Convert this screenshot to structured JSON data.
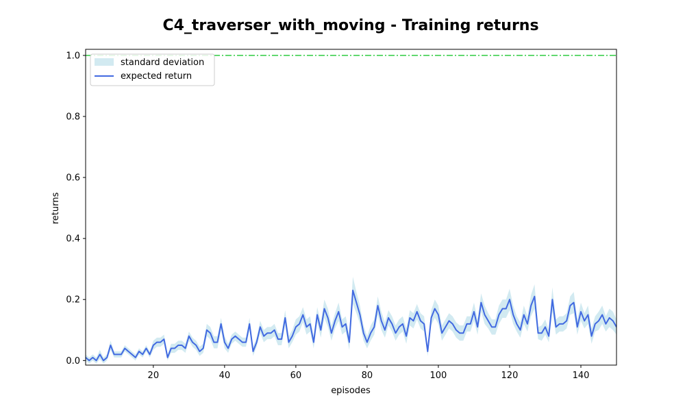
{
  "chart_data": {
    "type": "line",
    "title": "C4_traverser_with_moving - Training returns",
    "xlabel": "episodes",
    "ylabel": "returns",
    "xlim": [
      1,
      150
    ],
    "ylim": [
      -0.015,
      1.02
    ],
    "xticks": [
      20,
      40,
      60,
      80,
      100,
      120,
      140
    ],
    "yticks": [
      0.0,
      0.2,
      0.4,
      0.6,
      0.8,
      1.0
    ],
    "grid": false,
    "legend_position": "top-left",
    "legend": [
      "standard deviation",
      "expected return"
    ],
    "reference_line": {
      "y": 1.0,
      "color": "#2ecc40",
      "style": "dash-dot"
    },
    "series": [
      {
        "name": "expected return",
        "color": "#4169e1",
        "band_color": "#add8e6",
        "x": [
          1,
          2,
          3,
          4,
          5,
          6,
          7,
          8,
          9,
          10,
          11,
          12,
          13,
          14,
          15,
          16,
          17,
          18,
          19,
          20,
          21,
          22,
          23,
          24,
          25,
          26,
          27,
          28,
          29,
          30,
          31,
          32,
          33,
          34,
          35,
          36,
          37,
          38,
          39,
          40,
          41,
          42,
          43,
          44,
          45,
          46,
          47,
          48,
          49,
          50,
          51,
          52,
          53,
          54,
          55,
          56,
          57,
          58,
          59,
          60,
          61,
          62,
          63,
          64,
          65,
          66,
          67,
          68,
          69,
          70,
          71,
          72,
          73,
          74,
          75,
          76,
          77,
          78,
          79,
          80,
          81,
          82,
          83,
          84,
          85,
          86,
          87,
          88,
          89,
          90,
          91,
          92,
          93,
          94,
          95,
          96,
          97,
          98,
          99,
          100,
          101,
          102,
          103,
          104,
          105,
          106,
          107,
          108,
          109,
          110,
          111,
          112,
          113,
          114,
          115,
          116,
          117,
          118,
          119,
          120,
          121,
          122,
          123,
          124,
          125,
          126,
          127,
          128,
          129,
          130,
          131,
          132,
          133,
          134,
          135,
          136,
          137,
          138,
          139,
          140,
          141,
          142,
          143,
          144,
          145,
          146,
          147,
          148,
          149,
          150
        ],
        "values": [
          0.01,
          0.0,
          0.01,
          0.0,
          0.02,
          0.0,
          0.01,
          0.05,
          0.02,
          0.02,
          0.02,
          0.04,
          0.03,
          0.02,
          0.01,
          0.03,
          0.02,
          0.04,
          0.02,
          0.05,
          0.06,
          0.06,
          0.07,
          0.01,
          0.04,
          0.04,
          0.05,
          0.05,
          0.04,
          0.08,
          0.06,
          0.05,
          0.03,
          0.04,
          0.1,
          0.09,
          0.06,
          0.06,
          0.12,
          0.06,
          0.04,
          0.07,
          0.08,
          0.07,
          0.06,
          0.06,
          0.12,
          0.03,
          0.06,
          0.11,
          0.08,
          0.09,
          0.09,
          0.1,
          0.07,
          0.07,
          0.14,
          0.06,
          0.08,
          0.11,
          0.12,
          0.15,
          0.11,
          0.12,
          0.06,
          0.15,
          0.1,
          0.17,
          0.14,
          0.09,
          0.13,
          0.16,
          0.11,
          0.12,
          0.06,
          0.23,
          0.19,
          0.15,
          0.09,
          0.06,
          0.09,
          0.11,
          0.18,
          0.13,
          0.1,
          0.14,
          0.12,
          0.09,
          0.11,
          0.12,
          0.08,
          0.14,
          0.13,
          0.16,
          0.13,
          0.12,
          0.03,
          0.14,
          0.17,
          0.15,
          0.09,
          0.11,
          0.13,
          0.12,
          0.1,
          0.09,
          0.09,
          0.12,
          0.12,
          0.16,
          0.11,
          0.19,
          0.15,
          0.13,
          0.11,
          0.11,
          0.15,
          0.17,
          0.17,
          0.2,
          0.15,
          0.12,
          0.1,
          0.15,
          0.12,
          0.18,
          0.21,
          0.09,
          0.09,
          0.11,
          0.08,
          0.2,
          0.11,
          0.12,
          0.12,
          0.13,
          0.18,
          0.19,
          0.11,
          0.16,
          0.13,
          0.15,
          0.08,
          0.12,
          0.13,
          0.15,
          0.12,
          0.14,
          0.13,
          0.11
        ],
        "std": [
          0.01,
          0.01,
          0.01,
          0.01,
          0.015,
          0.01,
          0.01,
          0.015,
          0.01,
          0.01,
          0.01,
          0.01,
          0.01,
          0.01,
          0.01,
          0.01,
          0.01,
          0.01,
          0.01,
          0.015,
          0.015,
          0.015,
          0.015,
          0.01,
          0.015,
          0.015,
          0.015,
          0.015,
          0.015,
          0.015,
          0.015,
          0.015,
          0.015,
          0.015,
          0.02,
          0.02,
          0.02,
          0.02,
          0.02,
          0.02,
          0.015,
          0.015,
          0.015,
          0.015,
          0.015,
          0.015,
          0.02,
          0.015,
          0.015,
          0.02,
          0.02,
          0.02,
          0.02,
          0.02,
          0.02,
          0.02,
          0.025,
          0.02,
          0.02,
          0.025,
          0.025,
          0.025,
          0.025,
          0.025,
          0.02,
          0.025,
          0.025,
          0.03,
          0.03,
          0.025,
          0.025,
          0.03,
          0.025,
          0.025,
          0.025,
          0.045,
          0.035,
          0.03,
          0.025,
          0.02,
          0.025,
          0.025,
          0.03,
          0.03,
          0.025,
          0.025,
          0.025,
          0.025,
          0.025,
          0.025,
          0.025,
          0.025,
          0.025,
          0.025,
          0.025,
          0.025,
          0.015,
          0.025,
          0.03,
          0.03,
          0.025,
          0.025,
          0.025,
          0.025,
          0.025,
          0.025,
          0.025,
          0.025,
          0.025,
          0.03,
          0.025,
          0.03,
          0.03,
          0.025,
          0.025,
          0.025,
          0.03,
          0.03,
          0.03,
          0.035,
          0.03,
          0.025,
          0.025,
          0.03,
          0.025,
          0.035,
          0.04,
          0.02,
          0.025,
          0.025,
          0.02,
          0.04,
          0.025,
          0.025,
          0.025,
          0.025,
          0.03,
          0.035,
          0.025,
          0.03,
          0.025,
          0.03,
          0.025,
          0.025,
          0.03,
          0.03,
          0.025,
          0.03,
          0.03,
          0.025
        ]
      }
    ]
  }
}
